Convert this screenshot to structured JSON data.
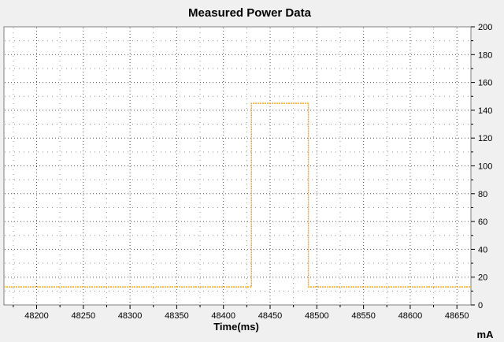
{
  "chart_data": {
    "type": "line",
    "title": "Measured Power Data",
    "xlabel": "Time(ms)",
    "ylabel": "mA",
    "xlim": [
      48165,
      48665
    ],
    "ylim": [
      0,
      200
    ],
    "x_ticks": [
      48200,
      48250,
      48300,
      48350,
      48400,
      48450,
      48500,
      48550,
      48600,
      48650
    ],
    "y_ticks": [
      0,
      20,
      40,
      60,
      80,
      100,
      120,
      140,
      160,
      180,
      200
    ],
    "grid": true,
    "legend": "none",
    "y_axis_side": "right",
    "series": [
      {
        "color": "#f5a623",
        "x": [
          48165,
          48430,
          48430,
          48491,
          48491,
          48665
        ],
        "y": [
          13,
          13,
          145,
          145,
          13,
          13
        ]
      }
    ]
  }
}
